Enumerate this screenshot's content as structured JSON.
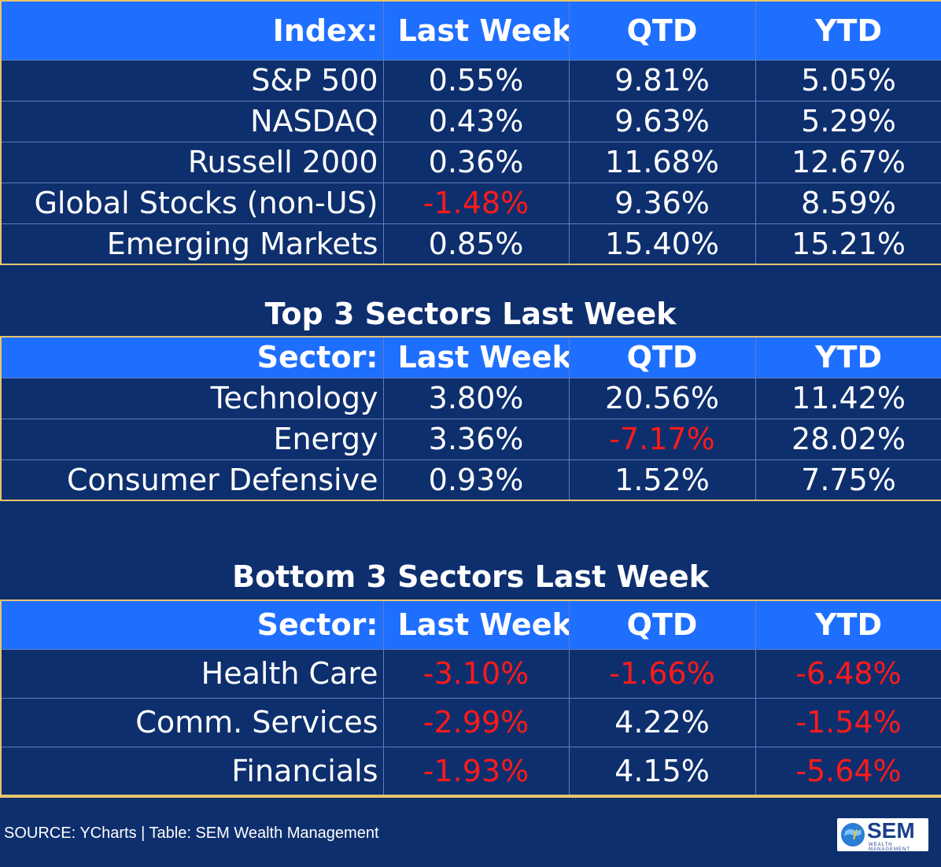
{
  "index_table": {
    "headers": [
      "Index:",
      "Last Week",
      "QTD",
      "YTD"
    ],
    "rows": [
      {
        "name": "S&P 500",
        "last_week": "0.55%",
        "qtd": "9.81%",
        "ytd": "5.05%"
      },
      {
        "name": "NASDAQ",
        "last_week": "0.43%",
        "qtd": "9.63%",
        "ytd": "5.29%"
      },
      {
        "name": "Russell 2000",
        "last_week": "0.36%",
        "qtd": "11.68%",
        "ytd": "12.67%"
      },
      {
        "name": "Global Stocks (non-US)",
        "last_week": "-1.48%",
        "qtd": "9.36%",
        "ytd": "8.59%"
      },
      {
        "name": "Emerging Markets",
        "last_week": "0.85%",
        "qtd": "15.40%",
        "ytd": "15.21%"
      }
    ]
  },
  "top_sectors": {
    "title": "Top 3 Sectors Last Week",
    "headers": [
      "Sector:",
      "Last Week",
      "QTD",
      "YTD"
    ],
    "rows": [
      {
        "name": "Technology",
        "last_week": "3.80%",
        "qtd": "20.56%",
        "ytd": "11.42%"
      },
      {
        "name": "Energy",
        "last_week": "3.36%",
        "qtd": "-7.17%",
        "ytd": "28.02%"
      },
      {
        "name": "Consumer Defensive",
        "last_week": "0.93%",
        "qtd": "1.52%",
        "ytd": "7.75%"
      }
    ]
  },
  "bottom_sectors": {
    "title": "Bottom 3 Sectors Last Week",
    "headers": [
      "Sector:",
      "Last Week",
      "QTD",
      "YTD"
    ],
    "rows": [
      {
        "name": "Health Care",
        "last_week": "-3.10%",
        "qtd": "-1.66%",
        "ytd": "-6.48%"
      },
      {
        "name": "Comm. Services",
        "last_week": "-2.99%",
        "qtd": "4.22%",
        "ytd": "-1.54%"
      },
      {
        "name": "Financials",
        "last_week": "-1.93%",
        "qtd": "4.15%",
        "ytd": "-5.64%"
      }
    ]
  },
  "footer": {
    "source": "SOURCE: YCharts | Table: SEM Wealth Management",
    "logo_text": "SEM",
    "logo_sub": "WEALTH MANAGEMENT"
  },
  "colors": {
    "background": "#0e2f6e",
    "header": "#1f6fff",
    "negative": "#ff1a1a",
    "border": "#e8c46a"
  }
}
